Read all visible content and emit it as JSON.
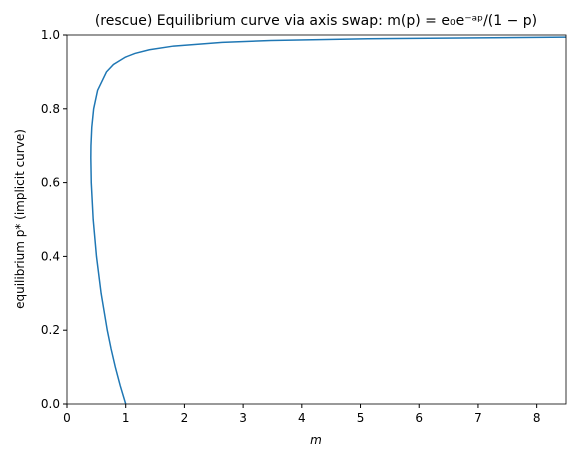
{
  "chart_data": {
    "type": "line",
    "title": "(rescue) Equilibrium curve via axis swap: m(p) = e₀e⁻ᵃᵖ/(1 − p)",
    "x_label": "m",
    "y_label": "equilibrium p* (implicit curve)",
    "x": [
      1,
      0.906,
      0.823,
      0.75,
      0.686,
      0.581,
      0.502,
      0.446,
      0.413,
      0.406,
      0.408,
      0.422,
      0.454,
      0.521,
      0.672,
      0.791,
      0.994,
      1.157,
      1.403,
      1.815,
      2.643,
      3.473,
      5.13,
      8.5
    ],
    "series": [
      {
        "color": "#1f77b4",
        "values": [
          0,
          0.05,
          0.1,
          0.15,
          0.2,
          0.3,
          0.4,
          0.5,
          0.6,
          0.667,
          0.7,
          0.75,
          0.8,
          0.85,
          0.9,
          0.92,
          0.94,
          0.95,
          0.96,
          0.97,
          0.98,
          0.985,
          0.99,
          0.9941
        ]
      }
    ],
    "xlim": [
      0,
      8.5
    ],
    "ylim": [
      0,
      1
    ],
    "xticks": [
      0,
      1,
      2,
      3,
      4,
      5,
      6,
      7,
      8
    ],
    "yticks": [
      {
        "value": 0,
        "label": "0.0"
      },
      {
        "value": 0.2,
        "label": "0.2"
      },
      {
        "value": 0.4,
        "label": "0.4"
      },
      {
        "value": 0.6,
        "label": "0.6"
      },
      {
        "value": 0.8,
        "label": "0.8"
      },
      {
        "value": 1,
        "label": "1.0"
      }
    ]
  }
}
